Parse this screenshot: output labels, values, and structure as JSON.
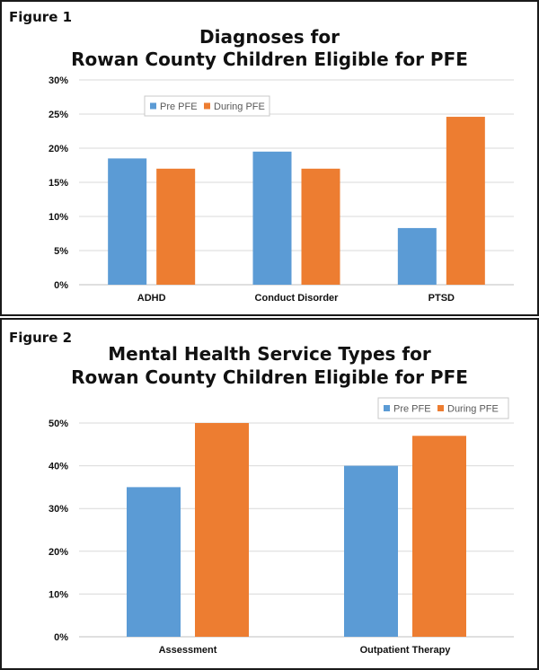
{
  "figures": [
    {
      "label": "Figure 1",
      "title_line1": "Diagnoses for",
      "title_line2": "Rowan County Children Eligible for PFE"
    },
    {
      "label": "Figure 2",
      "title_line1": "Mental Health Service Types for",
      "title_line2": "Rowan County Children Eligible for PFE"
    }
  ],
  "colors": {
    "pre": "#5b9bd5",
    "during": "#ed7d31",
    "grid": "#d9d9d9",
    "border": "#1a1a1a"
  },
  "chart_data": [
    {
      "type": "bar",
      "title": "Diagnoses for Rowan County Children Eligible for PFE",
      "categories": [
        "ADHD",
        "Conduct Disorder",
        "PTSD"
      ],
      "series": [
        {
          "name": "Pre PFE",
          "values": [
            18.5,
            19.5,
            8.3
          ]
        },
        {
          "name": "During PFE",
          "values": [
            17,
            17,
            24.6
          ]
        }
      ],
      "yticks": [
        "0%",
        "5%",
        "10%",
        "15%",
        "20%",
        "25%",
        "30%"
      ],
      "ylim": [
        0,
        30
      ],
      "grid": true,
      "legend": "top-left"
    },
    {
      "type": "bar",
      "title": "Mental Health Service Types for Rowan County Children Eligible for PFE",
      "categories": [
        "Assessment",
        "Outpatient Therapy"
      ],
      "series": [
        {
          "name": "Pre PFE",
          "values": [
            35,
            40
          ]
        },
        {
          "name": "During PFE",
          "values": [
            50,
            47
          ]
        }
      ],
      "yticks": [
        "0%",
        "10%",
        "20%",
        "30%",
        "40%",
        "50%"
      ],
      "ylim": [
        0,
        50
      ],
      "grid": true,
      "legend": "top-right"
    }
  ]
}
